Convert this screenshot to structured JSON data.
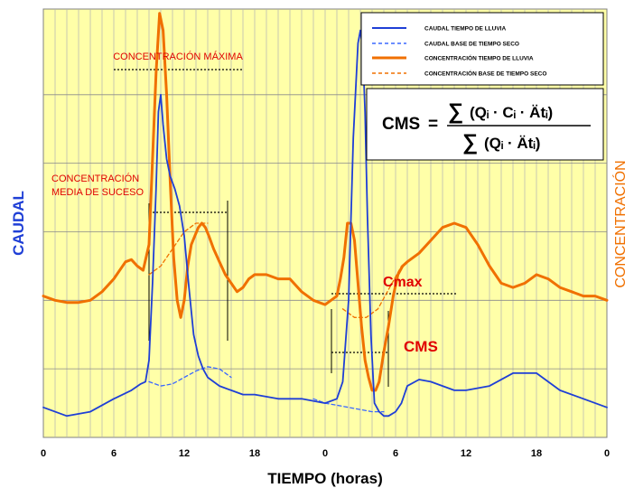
{
  "chart_data": {
    "type": "line",
    "title": "",
    "xlabel": "TIEMPO (horas)",
    "ylabel_left": "CAUDAL",
    "ylabel_right": "CONCENTRACIÓN",
    "x_ticks": [
      "0",
      "6",
      "12",
      "18",
      "0",
      "6",
      "12",
      "18",
      "0"
    ],
    "xlim": [
      0,
      48
    ],
    "ylim": [
      0,
      100
    ],
    "grid": true,
    "background": "#ffffa8",
    "series": [
      {
        "name": "CAUDAL TIEMPO DE LLUVIA",
        "color": "#1f3fd6",
        "dash": "solid",
        "x": [
          0,
          2,
          4,
          6,
          7.5,
          8.3,
          8.7,
          9.0,
          9.3,
          9.6,
          9.8,
          10.0,
          10.2,
          10.5,
          10.8,
          11.2,
          11.6,
          12.0,
          12.4,
          12.8,
          13.2,
          13.6,
          14.0,
          14.5,
          15.0,
          16,
          17,
          18,
          20,
          22,
          24,
          25,
          25.5,
          26,
          26.4,
          26.8,
          27.0,
          27.2,
          27.4,
          27.6,
          27.9,
          28.2,
          28.6,
          29.0,
          29.4,
          30.0,
          30.5,
          31,
          32,
          33,
          34,
          35,
          36,
          38,
          40,
          42,
          44,
          46,
          48
        ],
        "y": [
          7,
          5,
          6,
          9,
          11,
          12.5,
          13,
          18,
          36,
          58,
          76,
          80,
          73,
          65,
          61,
          58,
          54,
          47,
          35,
          24,
          19,
          16,
          14,
          13,
          12,
          11,
          10,
          10,
          9,
          9,
          8,
          9,
          13,
          32,
          70,
          92,
          95,
          91,
          76,
          52,
          24,
          8,
          6,
          5,
          5,
          6,
          8,
          12,
          13.5,
          13,
          12,
          11,
          11,
          12,
          15,
          15,
          11,
          9,
          7
        ]
      },
      {
        "name": "CAUDAL BASE DE TIEMPO SECO",
        "color": "#3b68ff",
        "dash": "dash",
        "x": [
          9,
          10,
          11,
          12,
          13,
          14,
          15,
          16
        ],
        "y": [
          13,
          12,
          12.5,
          14,
          15.5,
          16.5,
          16,
          14
        ]
      },
      {
        "name": "CAUDAL BASE DE TIEMPO SECO",
        "color": "#3b68ff",
        "dash": "dash",
        "x": [
          23,
          24,
          25,
          26,
          27,
          28,
          29
        ],
        "y": [
          9,
          8,
          7.5,
          7,
          6.5,
          6,
          6
        ]
      },
      {
        "name": "CONCENTRACIÓN TIEMPO DE LLUVIA",
        "color": "#f07000",
        "dash": "solid",
        "x": [
          0,
          1,
          2,
          3,
          4,
          5,
          6,
          7,
          7.5,
          8,
          8.5,
          9.0,
          9.3,
          9.6,
          9.9,
          10.2,
          10.5,
          10.8,
          11.1,
          11.4,
          11.7,
          12.0,
          12.3,
          12.6,
          12.9,
          13.2,
          13.5,
          13.8,
          14.1,
          14.5,
          15,
          15.5,
          16,
          16.5,
          17,
          17.5,
          18,
          19,
          20,
          21,
          22,
          23,
          24,
          25,
          25.3,
          25.6,
          25.9,
          26.2,
          26.5,
          26.8,
          27.1,
          27.4,
          27.7,
          28.0,
          28.3,
          28.6,
          29.0,
          29.4,
          29.8,
          30.2,
          30.6,
          31,
          32,
          33,
          34,
          35,
          36,
          37,
          38,
          39,
          40,
          41,
          42,
          43,
          44,
          45,
          46,
          47,
          48
        ],
        "y": [
          33,
          32,
          31.5,
          31.5,
          32,
          34,
          37,
          41,
          41.5,
          40,
          39,
          45,
          65,
          85,
          99,
          95,
          80,
          60,
          42,
          32,
          28,
          32,
          40,
          45,
          47,
          49,
          50,
          49,
          47,
          44,
          41,
          38,
          36,
          34,
          35,
          37,
          38,
          38,
          37,
          37,
          34,
          32,
          31,
          33,
          37,
          42,
          50,
          50,
          46,
          36,
          26,
          18,
          14,
          11,
          11,
          13,
          20,
          26,
          33,
          38,
          40,
          41,
          43,
          46,
          49,
          50,
          49,
          45,
          40,
          36,
          35,
          36,
          38,
          37,
          35,
          34,
          33,
          33,
          32
        ]
      },
      {
        "name": "CONCENTRACIÓN BASE DE TIEMPO SECO",
        "color": "#f07000",
        "dash": "dash",
        "x": [
          9,
          10,
          11,
          12,
          13,
          14
        ],
        "y": [
          38,
          40,
          44,
          48,
          50,
          50
        ]
      },
      {
        "name": "CONCENTRACIÓN BASE DE TIEMPO SECO",
        "color": "#f07000",
        "dash": "dash",
        "x": [
          25.5,
          26.5,
          27.5,
          28.5,
          29.5,
          30.5
        ],
        "y": [
          30,
          28,
          28,
          30,
          35,
          40
        ]
      }
    ],
    "annotations": {
      "concentracion_maxima": "CONCENTRACIÓN MÁXIMA",
      "concentracion_media_l1": "CONCENTRACIÓN",
      "concentracion_media_l2": "MEDIA DE SUCESO",
      "cmax": "Cmax",
      "cms": "CMS"
    },
    "formula": {
      "lhs": "CMS",
      "equals": "=",
      "sigma": "∑",
      "numerator": "(Qᵢ · Cᵢ · Ätᵢ)",
      "denominator": "(Qᵢ · Ätᵢ)"
    },
    "legend_position": "top-right"
  }
}
